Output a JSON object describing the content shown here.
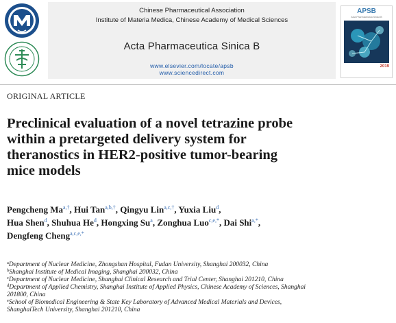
{
  "header": {
    "association": "Chinese Pharmaceutical Association",
    "institute": "Institute of Materia Medica, Chinese Academy of Medical Sciences",
    "journal_name": "Acta Pharmaceutica Sinica B",
    "url_elsevier": "www.elsevier.com/locate/apsb",
    "url_sciencedirect": "www.sciencedirect.com",
    "logos": [
      "chinese-pharmaceutical-association-logo",
      "chinese-academy-medical-sciences-logo"
    ],
    "cover": {
      "title": "APSB",
      "subtitle": "Acta Pharmaceutica Sinica B",
      "year": "2019",
      "colors": {
        "title": "#3a7bb0",
        "art_dark": "#16375a",
        "art_accent": "#2fa7c9"
      }
    }
  },
  "article": {
    "type": "ORIGINAL ARTICLE",
    "title_lines": [
      "Preclinical evaluation of a novel tetrazine probe",
      "within a pretargeted delivery system for",
      "theranostics in HER2-positive tumor-bearing",
      "mice models"
    ],
    "authors": [
      {
        "name": "Pengcheng Ma",
        "sup": "a,†",
        "sep": ", "
      },
      {
        "name": "Hui Tan",
        "sup": "a,b,†",
        "sep": ", "
      },
      {
        "name": "Qingyu Lin",
        "sup": "a,c,†",
        "sep": ", "
      },
      {
        "name": "Yuxia Liu",
        "sup": "d",
        "sep": ","
      },
      {
        "name": "Hua Shen",
        "sup": "d",
        "sep": ", "
      },
      {
        "name": "Shuhua He",
        "sup": "d",
        "sep": ", "
      },
      {
        "name": "Hongxing Su",
        "sup": "a",
        "sep": ", "
      },
      {
        "name": "Zonghua Luo",
        "sup": "c,e,*",
        "sep": ", "
      },
      {
        "name": "Dai Shi",
        "sup": "a,*",
        "sep": ","
      },
      {
        "name": "Dengfeng Cheng",
        "sup": "a,c,e,*",
        "sep": ""
      }
    ],
    "affiliations": [
      {
        "sup": "a",
        "text": "Department of Nuclear Medicine, Zhongshan Hospital, Fudan University, Shanghai 200032, China"
      },
      {
        "sup": "b",
        "text": "Shanghai Institute of Medical Imaging, Shanghai 200032, China"
      },
      {
        "sup": "c",
        "text": "Department of Nuclear Medicine, Shanghai Clinical Research and Trial Center, Shanghai 201210, China"
      },
      {
        "sup": "d",
        "text": "Department of Applied Chemistry, Shanghai Institute of Applied Physics, Chinese Academy of Sciences, Shanghai"
      },
      {
        "sup": "",
        "text": "201800, China"
      },
      {
        "sup": "e",
        "text": "School of Biomedical Engineering & State Key Laboratory of Advanced Medical Materials and Devices,"
      },
      {
        "sup": "",
        "text": "ShanghaiTech University, Shanghai 201210, China"
      }
    ]
  }
}
